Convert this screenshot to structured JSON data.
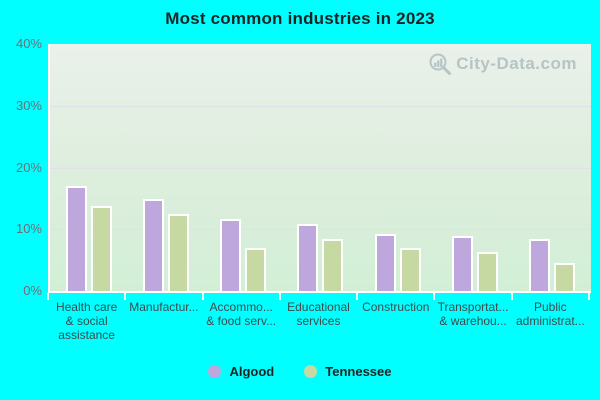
{
  "title": "Most common industries in 2023",
  "watermark": "City-Data.com",
  "colors": {
    "page_background": "#00ffff",
    "plot_gradient_top": "#eaf0ea",
    "plot_gradient_bottom": "#d2efd6",
    "gridline": "#e3dfe8",
    "axis_line": "#ffffff",
    "title_text": "#1e2424",
    "tick_text": "#6e6e76",
    "category_text": "#3f4b4b",
    "algood": "#bda7dc",
    "tennessee": "#c6d9a2"
  },
  "y_axis": {
    "ticks": [
      "40%",
      "30%",
      "20%",
      "10%",
      "0%"
    ],
    "gridline_values": [
      30,
      20,
      10
    ]
  },
  "legend": {
    "items": [
      {
        "label": "Algood",
        "color": "#bda7dc"
      },
      {
        "label": "Tennessee",
        "color": "#c6d9a2"
      }
    ]
  },
  "chart_data": {
    "type": "bar",
    "title": "Most common industries in 2023",
    "categories": [
      "Health care & social assistance",
      "Manufactur...",
      "Accommo... & food serv...",
      "Educational services",
      "Construction",
      "Transportat... & warehou...",
      "Public administrat..."
    ],
    "categories_display": [
      [
        "Health care",
        "& social",
        "assistance"
      ],
      [
        "Manufactur..."
      ],
      [
        "Accommo...",
        "& food serv..."
      ],
      [
        "Educational",
        "services"
      ],
      [
        "Construction"
      ],
      [
        "Transportat...",
        "& warehou..."
      ],
      [
        "Public",
        "administrat..."
      ]
    ],
    "series": [
      {
        "name": "Algood",
        "color": "#bda7dc",
        "values": [
          17.0,
          14.9,
          11.7,
          10.8,
          9.2,
          8.9,
          8.5
        ]
      },
      {
        "name": "Tennessee",
        "color": "#c6d9a2",
        "values": [
          13.7,
          12.4,
          6.9,
          8.4,
          6.9,
          6.3,
          4.5
        ]
      }
    ],
    "xlabel": "",
    "ylabel": "",
    "ylim": [
      0,
      40
    ],
    "yticks_percent": [
      0,
      10,
      20,
      30,
      40
    ],
    "grid": true,
    "legend_position": "bottom"
  }
}
